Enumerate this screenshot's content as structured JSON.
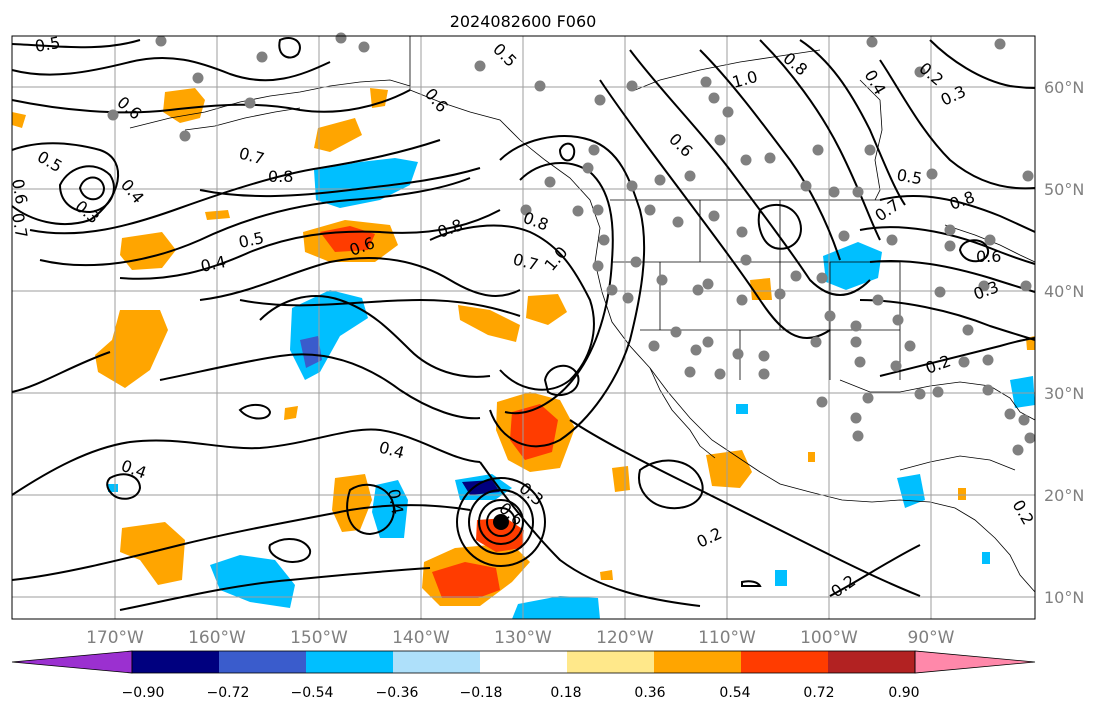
{
  "title": "2024082600 F060",
  "longitude_labels": [
    "170°W",
    "160°W",
    "150°W",
    "140°W",
    "130°W",
    "120°W",
    "110°W",
    "100°W",
    "90°W"
  ],
  "latitude_labels": [
    "60°N",
    "50°N",
    "40°N",
    "30°N",
    "20°N",
    "10°N"
  ],
  "colorbar": {
    "tick_labels": [
      "−0.90",
      "−0.72",
      "−0.54",
      "−0.36",
      "−0.18",
      "0.18",
      "0.36",
      "0.54",
      "0.72",
      "0.90"
    ],
    "colors": [
      "#9b30d0",
      "#00007f",
      "#3a5ccc",
      "#00bfff",
      "#aee0fa",
      "#ffffff",
      "#ffe88a",
      "#ffa500",
      "#ff3c00",
      "#b22222",
      "#ff88aa"
    ]
  },
  "contour_labels": [
    "0.5",
    "0.6",
    "0.5",
    "0.4",
    "0.3",
    "0.7",
    "0.8",
    "0.7",
    "0.6",
    "0.5",
    "0.4",
    "0.6",
    "0.8",
    "0.8",
    "0.7",
    "1.0",
    "0.5",
    "0.6",
    "0.4",
    "0.4",
    "0.4",
    "0.3",
    "0.6",
    "0.2",
    "0.2",
    "1.0",
    "0.8",
    "0.4",
    "0.2",
    "0.3",
    "0.6",
    "0.5",
    "0.7",
    "0.8",
    "0.6",
    "0.3",
    "0.2",
    "0.2"
  ],
  "colors": {
    "contour": "#000000",
    "gridline": "#9e9e9e",
    "tick_text": "#808080",
    "station_dot": "#808080",
    "storm_center": "#000000"
  }
}
